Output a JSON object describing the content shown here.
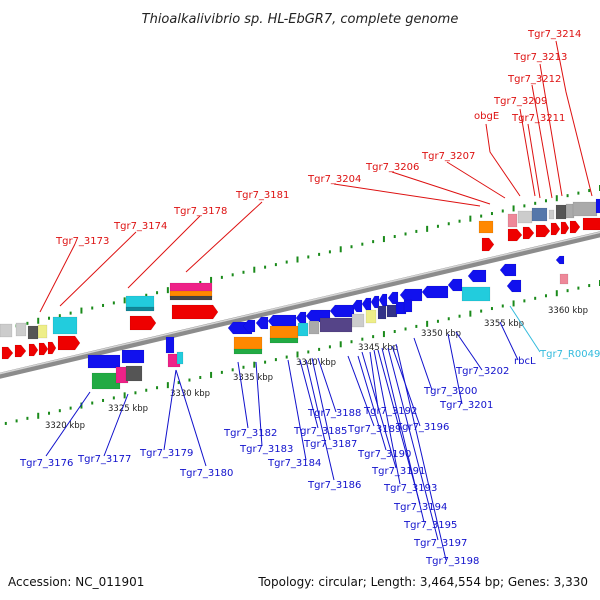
{
  "title": "Thioalkalivibrio sp. HL-EbGR7, complete genome",
  "footer": {
    "accession": "Accession: NC_011901",
    "summary": "Topology: circular; Length: 3,464,554 bp; Genes: 3,330"
  },
  "colors": {
    "top_label": "#dd1111",
    "bottom_label": "#1111cc",
    "rna_label": "#33bbdd",
    "backbone": "#8c8c8c",
    "tick": "#1a8a1a"
  },
  "scale_labels": [
    "3320 kbp",
    "3325 kbp",
    "3330 kbp",
    "3335 kbp",
    "3340 kbp",
    "3345 kbp",
    "3350 kbp",
    "3355 kbp",
    "3360 kbp"
  ],
  "top_labels": [
    "Tgr7_3173",
    "Tgr7_3174",
    "Tgr7_3178",
    "Tgr7_3181",
    "Tgr7_3204",
    "Tgr7_3206",
    "Tgr7_3207",
    "obgE",
    "Tgr7_3211",
    "Tgr7_3209",
    "Tgr7_3212",
    "Tgr7_3213",
    "Tgr7_3214"
  ],
  "bottom_labels": [
    "Tgr7_3176",
    "Tgr7_3177",
    "Tgr7_3179",
    "Tgr7_3180",
    "Tgr7_3182",
    "Tgr7_3183",
    "Tgr7_3184",
    "Tgr7_3185",
    "Tgr7_3186",
    "Tgr7_3187",
    "Tgr7_3188",
    "Tgr7_3189",
    "Tgr7_3190",
    "Tgr7_3191",
    "Tgr7_3192",
    "Tgr7_3193",
    "Tgr7_3194",
    "Tgr7_3195",
    "Tgr7_3196",
    "Tgr7_3197",
    "Tgr7_3198",
    "Tgr7_3200",
    "Tgr7_3201",
    "Tgr7_3202",
    "rbcL",
    "Tgr7_R0049"
  ]
}
